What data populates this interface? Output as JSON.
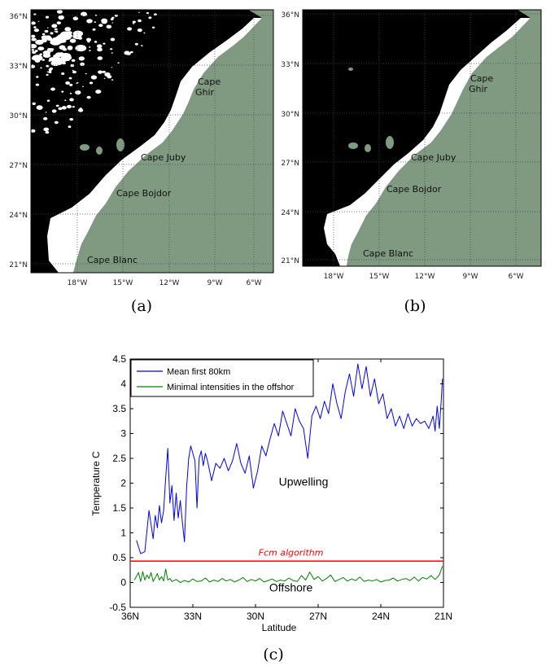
{
  "colors": {
    "land": "#000000",
    "ocean": "#7f9a81",
    "cloud_gap": "#ffffff",
    "mean_series": "#0000ff",
    "minimal_series": "#007f00",
    "threshold": "#ff0000"
  },
  "maps": [
    {
      "id": "a",
      "caption": "(a)",
      "lat_ticks": [
        "36°N",
        "33°N",
        "30°N",
        "27°N",
        "24°N",
        "21°N"
      ],
      "lon_ticks": [
        "18°W",
        "15°W",
        "12°W",
        "9°W",
        "6°W"
      ],
      "labels": {
        "ghir": "Cape\nGhir",
        "juby": "Cape Juby",
        "bojdor": "Cape Bojdor",
        "blanc": "Cape Blanc"
      },
      "has_cloud_noise": true
    },
    {
      "id": "b",
      "caption": "(b)",
      "lat_ticks": [
        "36°N",
        "33°N",
        "30°N",
        "27°N",
        "24°N",
        "21°N"
      ],
      "lon_ticks": [
        "18°W",
        "15°W",
        "12°W",
        "9°W",
        "6°W"
      ],
      "labels": {
        "ghir": "Cape\nGhir",
        "juby": "Cape Juby",
        "bojdor": "Cape Bojdor",
        "blanc": "Cape Blanc"
      },
      "has_cloud_noise": false
    }
  ],
  "chart_caption": "(c)",
  "chart_data": {
    "type": "line",
    "xlabel": "Latitude",
    "ylabel": "Temperature C",
    "xlim": [
      36,
      21
    ],
    "ylim": [
      -0.5,
      4.5
    ],
    "x_ticks": [
      {
        "v": 36,
        "label": "36N"
      },
      {
        "v": 33,
        "label": "33N"
      },
      {
        "v": 30,
        "label": "30N"
      },
      {
        "v": 27,
        "label": "27N"
      },
      {
        "v": 24,
        "label": "24N"
      },
      {
        "v": 21,
        "label": "21N"
      }
    ],
    "y_ticks": [
      {
        "v": -0.5,
        "label": "-0.5"
      },
      {
        "v": 0,
        "label": "0"
      },
      {
        "v": 0.5,
        "label": "0.5"
      },
      {
        "v": 1,
        "label": "1"
      },
      {
        "v": 1.5,
        "label": "1.5"
      },
      {
        "v": 2,
        "label": "2"
      },
      {
        "v": 2.5,
        "label": "2.5"
      },
      {
        "v": 3,
        "label": "3"
      },
      {
        "v": 3.5,
        "label": "3.5"
      },
      {
        "v": 4,
        "label": "4"
      },
      {
        "v": 4.5,
        "label": "4.5"
      }
    ],
    "legend_position": "top-left",
    "series": [
      {
        "name": "Mean first 80km",
        "color": "#0000ff",
        "x": [
          35.7,
          35.5,
          35.3,
          35.1,
          34.9,
          34.8,
          34.7,
          34.6,
          34.5,
          34.4,
          34.3,
          34.2,
          34.1,
          34.0,
          33.9,
          33.8,
          33.7,
          33.6,
          33.5,
          33.4,
          33.3,
          33.2,
          33.1,
          33.0,
          32.9,
          32.8,
          32.7,
          32.6,
          32.5,
          32.4,
          32.3,
          32.1,
          31.9,
          31.7,
          31.5,
          31.3,
          31.1,
          30.9,
          30.7,
          30.5,
          30.3,
          30.1,
          29.9,
          29.7,
          29.5,
          29.3,
          29.1,
          28.9,
          28.7,
          28.5,
          28.3,
          28.1,
          27.9,
          27.7,
          27.5,
          27.3,
          27.1,
          26.9,
          26.7,
          26.5,
          26.3,
          26.1,
          25.9,
          25.7,
          25.5,
          25.3,
          25.1,
          24.9,
          24.7,
          24.5,
          24.3,
          24.1,
          23.9,
          23.7,
          23.5,
          23.3,
          23.1,
          22.9,
          22.7,
          22.5,
          22.3,
          22.1,
          21.9,
          21.7,
          21.5,
          21.4,
          21.3,
          21.2,
          21.1,
          21.05
        ],
        "values": [
          0.85,
          0.58,
          0.62,
          1.45,
          0.88,
          1.35,
          1.1,
          1.55,
          1.2,
          1.45,
          2.1,
          2.7,
          1.6,
          1.95,
          1.25,
          1.8,
          1.3,
          1.65,
          1.2,
          0.82,
          1.9,
          2.5,
          2.75,
          2.6,
          2.45,
          1.5,
          2.5,
          2.65,
          2.35,
          2.6,
          2.45,
          2.05,
          2.4,
          2.3,
          2.5,
          2.25,
          2.45,
          2.8,
          2.4,
          2.2,
          2.55,
          1.9,
          2.25,
          2.75,
          2.55,
          2.9,
          3.2,
          2.95,
          3.45,
          3.2,
          2.95,
          3.5,
          3.25,
          3.1,
          2.5,
          3.35,
          3.55,
          3.3,
          3.65,
          3.4,
          4.0,
          3.6,
          3.3,
          3.85,
          4.2,
          3.75,
          4.4,
          3.9,
          4.35,
          3.75,
          4.1,
          3.6,
          3.8,
          3.3,
          3.5,
          3.15,
          3.35,
          3.1,
          3.4,
          3.15,
          3.3,
          3.2,
          3.25,
          3.1,
          3.35,
          3.05,
          3.55,
          3.1,
          3.7,
          4.1
        ]
      },
      {
        "name": "Minimal intensities in the offshor",
        "color": "#007f00",
        "x": [
          35.8,
          35.6,
          35.5,
          35.4,
          35.3,
          35.2,
          35.1,
          35.0,
          34.9,
          34.8,
          34.7,
          34.6,
          34.5,
          34.4,
          34.3,
          34.2,
          34.1,
          34.0,
          33.8,
          33.6,
          33.4,
          33.2,
          33.0,
          32.8,
          32.6,
          32.4,
          32.2,
          32.0,
          31.8,
          31.6,
          31.4,
          31.2,
          31.0,
          30.8,
          30.6,
          30.4,
          30.2,
          30.0,
          29.8,
          29.6,
          29.4,
          29.2,
          29.0,
          28.8,
          28.6,
          28.4,
          28.2,
          28.0,
          27.8,
          27.6,
          27.4,
          27.2,
          27.0,
          26.8,
          26.6,
          26.4,
          26.2,
          26.0,
          25.8,
          25.6,
          25.4,
          25.2,
          25.0,
          24.8,
          24.6,
          24.4,
          24.2,
          24.0,
          23.8,
          23.6,
          23.4,
          23.2,
          23.0,
          22.8,
          22.6,
          22.4,
          22.2,
          22.0,
          21.8,
          21.6,
          21.4,
          21.2,
          21.05
        ],
        "values": [
          0.05,
          0.2,
          0.02,
          0.22,
          0.05,
          0.15,
          0.08,
          0.2,
          0.02,
          0.1,
          0.18,
          0.05,
          0.12,
          0.03,
          0.27,
          0.05,
          0.08,
          0.02,
          0.06,
          0.0,
          0.04,
          0.01,
          0.07,
          0.02,
          0.03,
          0.09,
          0.01,
          0.05,
          0.02,
          0.08,
          0.03,
          0.06,
          0.01,
          0.05,
          0.1,
          0.02,
          0.06,
          0.03,
          0.08,
          0.01,
          0.04,
          0.07,
          0.02,
          0.05,
          0.03,
          0.09,
          0.04,
          0.02,
          0.14,
          0.05,
          0.21,
          0.06,
          0.12,
          0.03,
          0.08,
          0.15,
          0.02,
          0.06,
          0.1,
          0.03,
          0.07,
          0.04,
          0.11,
          0.02,
          0.05,
          0.03,
          0.06,
          0.01,
          0.04,
          0.05,
          0.09,
          0.03,
          0.06,
          0.08,
          0.04,
          0.11,
          0.03,
          0.1,
          0.07,
          0.14,
          0.06,
          0.15,
          0.33
        ]
      }
    ],
    "threshold": {
      "y": 0.43,
      "label": "Fcm algorithm",
      "color": "#ff0000"
    },
    "annotations": [
      {
        "text": "Upwelling",
        "x": 27.7,
        "y": 1.95
      },
      {
        "text": "Offshore",
        "x": 28.3,
        "y": -0.18
      }
    ]
  }
}
